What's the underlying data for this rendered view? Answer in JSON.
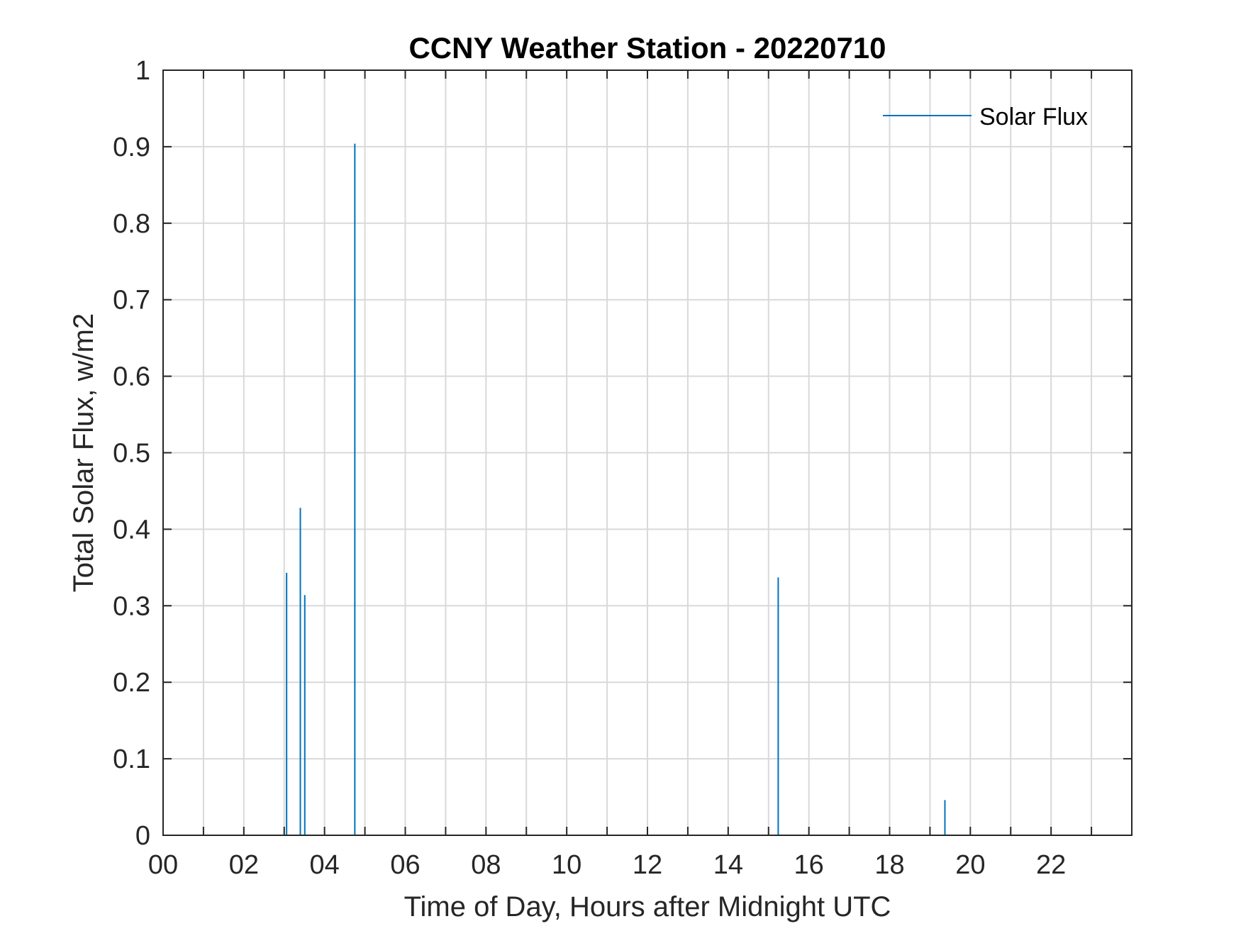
{
  "chart_data": {
    "type": "line",
    "title": "CCNY Weather Station - 20220710",
    "xlabel": "Time of Day, Hours after Midnight UTC",
    "ylabel": "Total Solar Flux, w/m2",
    "xlim": [
      0,
      24
    ],
    "ylim": [
      0,
      1
    ],
    "grid": true,
    "legend_position": "top-right",
    "x_tick_values": [
      0,
      2,
      4,
      6,
      8,
      10,
      12,
      14,
      16,
      18,
      20,
      22
    ],
    "x_tick_labels": [
      "00",
      "02",
      "04",
      "06",
      "08",
      "10",
      "12",
      "14",
      "16",
      "18",
      "20",
      "22"
    ],
    "y_tick_values": [
      0,
      0.1,
      0.2,
      0.3,
      0.4,
      0.5,
      0.6,
      0.7,
      0.8,
      0.9,
      1
    ],
    "y_tick_labels": [
      "0",
      "0.1",
      "0.2",
      "0.3",
      "0.4",
      "0.5",
      "0.6",
      "0.7",
      "0.8",
      "0.9",
      "1"
    ],
    "series": [
      {
        "name": "Solar Flux",
        "color": "#0072BD",
        "spikes": [
          {
            "x": 3.06,
            "y": 0.343
          },
          {
            "x": 3.4,
            "y": 0.428
          },
          {
            "x": 3.51,
            "y": 0.314
          },
          {
            "x": 4.75,
            "y": 0.904
          },
          {
            "x": 15.24,
            "y": 0.337
          },
          {
            "x": 19.37,
            "y": 0.046
          }
        ]
      }
    ]
  }
}
